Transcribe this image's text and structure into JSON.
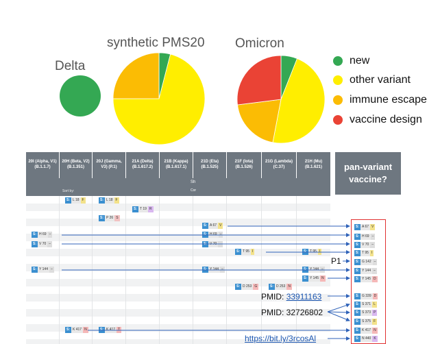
{
  "pies": [
    {
      "title": "Delta",
      "slices": [
        {
          "category": "new",
          "fraction": 1.0
        }
      ]
    },
    {
      "title": "synthetic PMS20",
      "slices": [
        {
          "category": "new",
          "fraction": 0.04
        },
        {
          "category": "other variant",
          "fraction": 0.71
        },
        {
          "category": "immune escape",
          "fraction": 0.25
        }
      ]
    },
    {
      "title": "Omicron",
      "slices": [
        {
          "category": "new",
          "fraction": 0.06
        },
        {
          "category": "other variant",
          "fraction": 0.47
        },
        {
          "category": "immune escape",
          "fraction": 0.2
        },
        {
          "category": "vaccine design",
          "fraction": 0.27
        }
      ]
    }
  ],
  "legend": [
    {
      "label": "new",
      "color": "#34a853"
    },
    {
      "label": "other variant",
      "color": "#ffee00"
    },
    {
      "label": "immune escape",
      "color": "#fbbc04"
    },
    {
      "label": "vaccine design",
      "color": "#ea4335"
    }
  ],
  "table": {
    "columns": [
      "20I (Alpha, V1) (B.1.1.7)",
      "20H (Beta, V2) (B.1.351)",
      "20J (Gamma, V3) (P.1)",
      "21A (Delta) (B.1.617.2)",
      "21B (Kappa) (B.1.617.1)",
      "21D (Eta) (B.1.525)",
      "21F (Iota) (B.1.526)",
      "21G (Lambda) (C.37)",
      "21H (Mu) (B.1.621)"
    ],
    "sort_label": "Sort by:",
    "header_fragment": "Sh",
    "header_fragment2": "Cor",
    "s_label": "S:"
  },
  "pan_variant": {
    "title": "pan-variant vaccine?",
    "mutations": [
      "A 67 V",
      "H 69 –",
      "V 70 –",
      "T 95 I",
      "G 142 –",
      "Y 144 –",
      "Y 145 D",
      "G 339 D",
      "S 371 L",
      "S 373 P",
      "S 375 F",
      "K 417 N",
      "N 440 K"
    ]
  },
  "annotations": {
    "p1": "P1",
    "pmid1_label": "PMID:",
    "pmid1_link": "33911163",
    "pmid2": "PMID: 32726802",
    "url": "https://bit.ly/3rcosAl"
  },
  "table_tags": [
    {
      "label": "L 18 F"
    },
    {
      "label": "L 18 F"
    },
    {
      "label": "T 19 R"
    },
    {
      "label": "P 26 S"
    },
    {
      "label": "A 67 V"
    },
    {
      "label": "H 69 –"
    },
    {
      "label": "H 69 –"
    },
    {
      "label": "V 70 –"
    },
    {
      "label": "V 70 –"
    },
    {
      "label": "T 95 I"
    },
    {
      "label": "T 95 I"
    },
    {
      "label": "Y 144 –"
    },
    {
      "label": "Y 144 –"
    },
    {
      "label": "Y 144 –"
    },
    {
      "label": "Y 145 N"
    },
    {
      "label": "D 253 G"
    },
    {
      "label": "D 253 N"
    },
    {
      "label": "K 417 N"
    },
    {
      "label": "K 417 T"
    }
  ]
}
